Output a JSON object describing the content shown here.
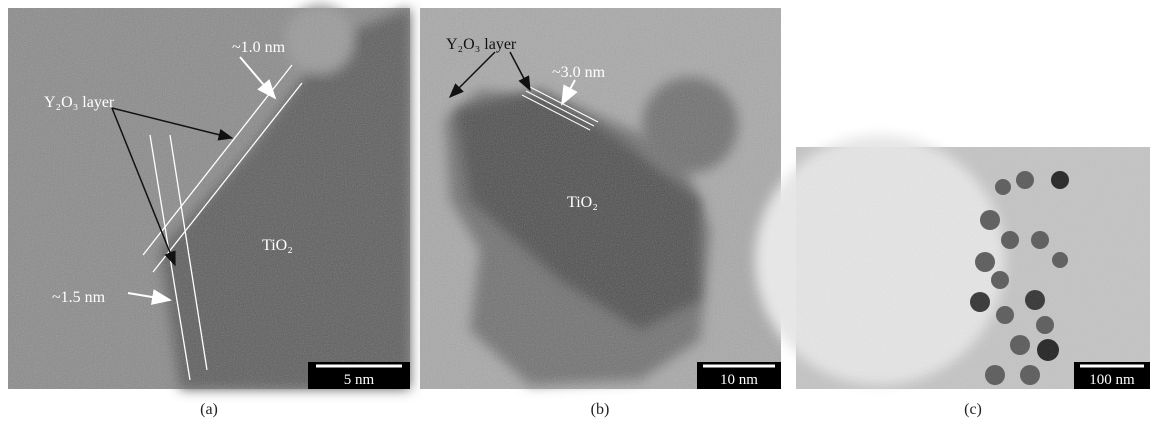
{
  "panels": [
    {
      "caption": "(a)",
      "annotations": [
        "~1.0 nm",
        "Y₂O₃ layer",
        "TiO₂",
        "~1.5 nm"
      ],
      "scale_bar": "5 nm"
    },
    {
      "caption": "(b)",
      "annotations": [
        "Y₂O₃ layer",
        "~3.0 nm",
        "TiO₂"
      ],
      "scale_bar": "10 nm"
    },
    {
      "caption": "(c)",
      "annotations": [],
      "scale_bar": "100 nm"
    }
  ]
}
